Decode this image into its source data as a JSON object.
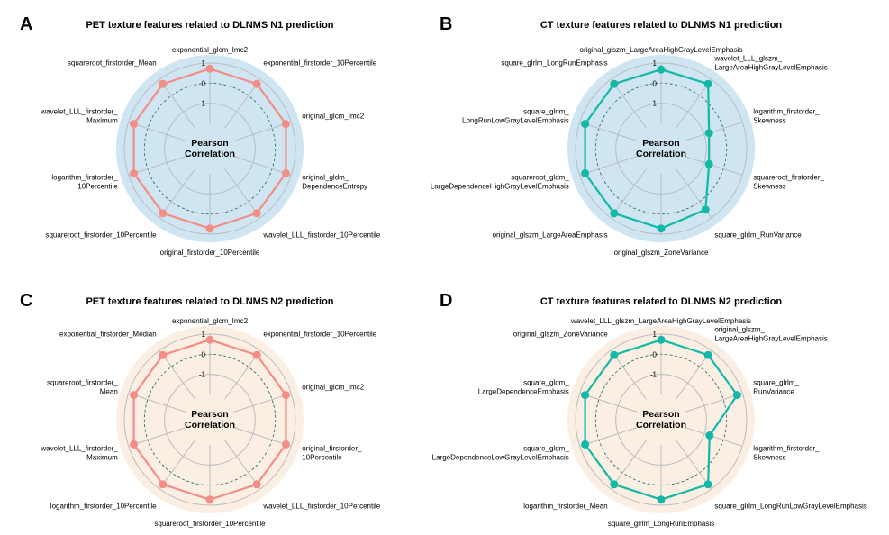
{
  "center_label_line1": "Pearson",
  "center_label_line2": "Correlation",
  "chart_data": [
    {
      "type": "radar",
      "letter": "A",
      "title": "PET texture features related to DLNMS N1 prediction",
      "rlim": [
        -2,
        1
      ],
      "ticks": [
        "1",
        "0",
        "-1"
      ],
      "background": "#cfe5f2",
      "line_color": "#f28e86",
      "categories": [
        "exponential_glcm_Imc2",
        "exponential_firstorder_10Percentile",
        "original_glcm_Imc2",
        "original_gldm_\nDependenceEntropy",
        "wavelet_LLL_firstorder_10Percentile",
        "original_firstorder_10Percentile",
        "squareroot_firstorder_10Percentile",
        "logarithm_firstorder_\n10Percentile",
        "wavelet_LLL_firstorder_\nMaximum",
        "squareroot_firstorder_Mean"
      ],
      "values": [
        0.72,
        0.72,
        0.72,
        0.72,
        0.72,
        0.72,
        0.72,
        0.72,
        0.72,
        0.72
      ]
    },
    {
      "type": "radar",
      "letter": "B",
      "title": "CT texture features related to DLNMS N1 prediction",
      "rlim": [
        -2,
        1
      ],
      "ticks": [
        "1",
        "0",
        "-1"
      ],
      "background": "#cfe5f2",
      "line_color": "#14b8a6",
      "categories": [
        "original_glszm_LargeAreaHighGrayLevelEmphasis",
        "wavelet_LLL_glszm_\nLargeAreaHighGrayLevelEmphasis",
        "logarithm_firstorder_\nSkewness",
        "squareroot_firstorder_\nSkewness",
        "square_glrlm_RunVariance",
        "original_glszm_ZoneVariance",
        "original_glszm_LargeAreaEmphasis",
        "squareroot_gldm_\nLargeDependenceHighGrayLevelEmphasis",
        "square_glrlm_\nLongRunLowGrayLevelEmphasis",
        "square_glrlm_LongRunEmphasis"
      ],
      "values": [
        0.68,
        0.72,
        -0.75,
        -0.75,
        0.5,
        0.72,
        0.72,
        0.72,
        0.72,
        0.72
      ]
    },
    {
      "type": "radar",
      "letter": "C",
      "title": "PET texture features related to DLNMS N2 prediction",
      "rlim": [
        -2,
        1
      ],
      "ticks": [
        "1",
        "0",
        "-1"
      ],
      "background": "#fbefe3",
      "line_color": "#f28e86",
      "categories": [
        "exponential_glcm_Imc2",
        "exponential_firstorder_10Percentile",
        "original_glcm_Imc2",
        "original_firstorder_\n10Percentile",
        "wavelet_LLL_firstorder_10Percentile",
        "squareroot_firstorder_10Percentile",
        "logarithm_firstorder_10Percentile",
        "wavelet_LLL_firstorder_\nMaximum",
        "squareroot_firstorder_\nMean",
        "exponential_firstorder_Median"
      ],
      "values": [
        0.72,
        0.72,
        0.72,
        0.72,
        0.72,
        0.72,
        0.72,
        0.72,
        0.72,
        0.72
      ]
    },
    {
      "type": "radar",
      "letter": "D",
      "title": "CT texture features related to DLNMS N2 prediction",
      "rlim": [
        -2,
        1
      ],
      "ticks": [
        "1",
        "0",
        "-1"
      ],
      "background": "#fbefe3",
      "line_color": "#14b8a6",
      "categories": [
        "wavelet_LLL_glszm_LargeAreaHighGrayLevelEmphasis",
        "original_glszm_\nLargeAreaHighGrayLevelEmphasis",
        "square_glrlm_\nRunVariance",
        "logarithm_firstorder_\nSkewness",
        "square_glrlm_LongRunLowGrayLevelEmphasis",
        "square_glrlm_LongRunEmphasis",
        "logarithm_firstorder_Mean",
        "square_gldm_\nLargeDependenceLowGrayLevelEmphasis",
        "square_gldm_\nLargeDependenceEmphasis",
        "original_glszm_ZoneVariance"
      ],
      "values": [
        0.72,
        0.72,
        0.72,
        -0.72,
        0.72,
        0.72,
        0.72,
        0.72,
        0.72,
        0.72
      ]
    }
  ]
}
